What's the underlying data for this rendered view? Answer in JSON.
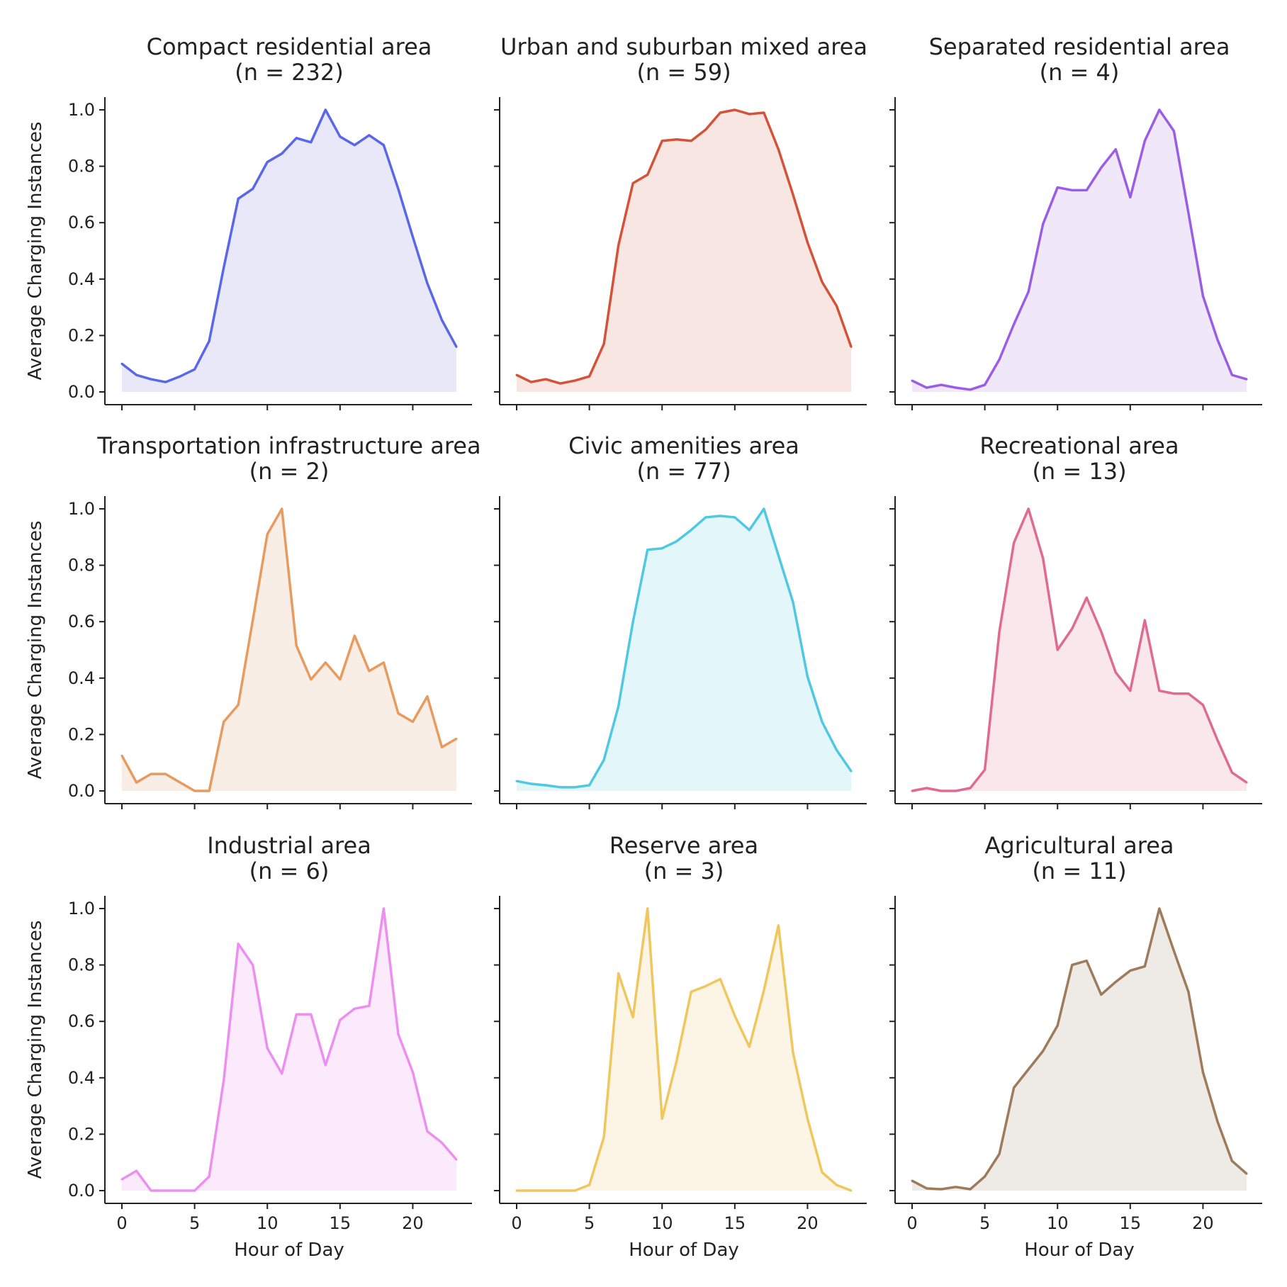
{
  "chart_data": [
    {
      "type": "area",
      "title": "Compact residential area",
      "subtitle": "(n = 232)",
      "xlabel": "",
      "ylabel": "Average Charging Instances",
      "xlim": [
        0,
        23
      ],
      "ylim": [
        0,
        1.0
      ],
      "grid": false,
      "color": "#5a67e6",
      "fill": "#e4e4f8",
      "x": [
        0,
        1,
        2,
        3,
        4,
        5,
        6,
        7,
        8,
        9,
        10,
        11,
        12,
        13,
        14,
        15,
        16,
        17,
        18,
        19,
        20,
        21,
        22,
        23
      ],
      "values": [
        0.1,
        0.06,
        0.045,
        0.035,
        0.055,
        0.08,
        0.18,
        0.44,
        0.685,
        0.72,
        0.815,
        0.845,
        0.9,
        0.885,
        1.0,
        0.905,
        0.875,
        0.91,
        0.875,
        0.72,
        0.55,
        0.385,
        0.255,
        0.16
      ]
    },
    {
      "type": "area",
      "title": "Urban and suburban mixed area",
      "subtitle": "(n = 59)",
      "xlabel": "",
      "ylabel": "",
      "xlim": [
        0,
        23
      ],
      "ylim": [
        0,
        1.0
      ],
      "grid": false,
      "color": "#d45338",
      "fill": "#f6e2dd",
      "x": [
        0,
        1,
        2,
        3,
        4,
        5,
        6,
        7,
        8,
        9,
        10,
        11,
        12,
        13,
        14,
        15,
        16,
        17,
        18,
        19,
        20,
        21,
        22,
        23
      ],
      "values": [
        0.06,
        0.035,
        0.045,
        0.03,
        0.04,
        0.055,
        0.17,
        0.52,
        0.74,
        0.77,
        0.89,
        0.895,
        0.89,
        0.93,
        0.99,
        1.0,
        0.985,
        0.99,
        0.86,
        0.7,
        0.53,
        0.39,
        0.305,
        0.16
      ]
    },
    {
      "type": "area",
      "title": "Separated residential area",
      "subtitle": "(n = 4)",
      "xlabel": "",
      "ylabel": "",
      "xlim": [
        0,
        23
      ],
      "ylim": [
        0,
        1.0
      ],
      "grid": false,
      "color": "#9b5de5",
      "fill": "#ede3f8",
      "x": [
        0,
        1,
        2,
        3,
        4,
        5,
        6,
        7,
        8,
        9,
        10,
        11,
        12,
        13,
        14,
        15,
        16,
        17,
        18,
        19,
        20,
        21,
        22,
        23
      ],
      "values": [
        0.04,
        0.015,
        0.025,
        0.015,
        0.008,
        0.025,
        0.115,
        0.24,
        0.355,
        0.595,
        0.725,
        0.715,
        0.715,
        0.795,
        0.86,
        0.69,
        0.89,
        1.0,
        0.925,
        0.635,
        0.34,
        0.185,
        0.06,
        0.045
      ]
    },
    {
      "type": "area",
      "title": "Transportation infrastructure area",
      "subtitle": "(n = 2)",
      "xlabel": "",
      "ylabel": "Average Charging Instances",
      "xlim": [
        0,
        23
      ],
      "ylim": [
        0,
        1.0
      ],
      "grid": false,
      "color": "#e89b5f",
      "fill": "#f8ebe1",
      "x": [
        0,
        1,
        2,
        3,
        4,
        5,
        6,
        7,
        8,
        9,
        10,
        11,
        12,
        13,
        14,
        15,
        16,
        17,
        18,
        19,
        20,
        21,
        22,
        23
      ],
      "values": [
        0.125,
        0.03,
        0.06,
        0.06,
        0.03,
        0.0,
        0.0,
        0.245,
        0.305,
        0.605,
        0.91,
        1.0,
        0.515,
        0.395,
        0.455,
        0.395,
        0.55,
        0.425,
        0.455,
        0.275,
        0.245,
        0.335,
        0.155,
        0.185
      ]
    },
    {
      "type": "area",
      "title": "Civic amenities area",
      "subtitle": "(n = 77)",
      "xlabel": "",
      "ylabel": "",
      "xlim": [
        0,
        23
      ],
      "ylim": [
        0,
        1.0
      ],
      "grid": false,
      "color": "#4fc8e2",
      "fill": "#def4f8",
      "x": [
        0,
        1,
        2,
        3,
        4,
        5,
        6,
        7,
        8,
        9,
        10,
        11,
        12,
        13,
        14,
        15,
        16,
        17,
        18,
        19,
        20,
        21,
        22,
        23
      ],
      "values": [
        0.035,
        0.025,
        0.02,
        0.013,
        0.013,
        0.02,
        0.11,
        0.3,
        0.6,
        0.855,
        0.86,
        0.885,
        0.925,
        0.97,
        0.975,
        0.97,
        0.925,
        1.0,
        0.835,
        0.67,
        0.405,
        0.245,
        0.145,
        0.07
      ]
    },
    {
      "type": "area",
      "title": "Recreational area",
      "subtitle": "(n = 13)",
      "xlabel": "",
      "ylabel": "",
      "xlim": [
        0,
        23
      ],
      "ylim": [
        0,
        1.0
      ],
      "grid": false,
      "color": "#e06b91",
      "fill": "#f8e3e9",
      "x": [
        0,
        1,
        2,
        3,
        4,
        5,
        6,
        7,
        8,
        9,
        10,
        11,
        12,
        13,
        14,
        15,
        16,
        17,
        18,
        19,
        20,
        21,
        22,
        23
      ],
      "values": [
        0.0,
        0.01,
        0.0,
        0.0,
        0.01,
        0.075,
        0.565,
        0.88,
        1.0,
        0.825,
        0.5,
        0.575,
        0.685,
        0.565,
        0.42,
        0.355,
        0.605,
        0.355,
        0.345,
        0.345,
        0.305,
        0.18,
        0.065,
        0.03
      ]
    },
    {
      "type": "area",
      "title": "Industrial area",
      "subtitle": "(n = 6)",
      "xlabel": "Hour of Day",
      "ylabel": "Average Charging Instances",
      "xlim": [
        0,
        23
      ],
      "ylim": [
        0,
        1.0
      ],
      "grid": false,
      "color": "#ec8ff0",
      "fill": "#f9e6fa",
      "x": [
        0,
        1,
        2,
        3,
        4,
        5,
        6,
        7,
        8,
        9,
        10,
        11,
        12,
        13,
        14,
        15,
        16,
        17,
        18,
        19,
        20,
        21,
        22,
        23
      ],
      "values": [
        0.04,
        0.07,
        0.0,
        0.0,
        0.0,
        0.0,
        0.05,
        0.39,
        0.875,
        0.8,
        0.505,
        0.415,
        0.625,
        0.625,
        0.445,
        0.605,
        0.645,
        0.655,
        1.0,
        0.555,
        0.42,
        0.21,
        0.17,
        0.11
      ]
    },
    {
      "type": "area",
      "title": "Reserve area",
      "subtitle": "(n = 3)",
      "xlabel": "Hour of Day",
      "ylabel": "",
      "xlim": [
        0,
        23
      ],
      "ylim": [
        0,
        1.0
      ],
      "grid": false,
      "color": "#f0c75e",
      "fill": "#fbf3e0",
      "x": [
        0,
        1,
        2,
        3,
        4,
        5,
        6,
        7,
        8,
        9,
        10,
        11,
        12,
        13,
        14,
        15,
        16,
        17,
        18,
        19,
        20,
        21,
        22,
        23
      ],
      "values": [
        0.0,
        0.0,
        0.0,
        0.0,
        0.0,
        0.02,
        0.19,
        0.77,
        0.615,
        1.0,
        0.255,
        0.46,
        0.705,
        0.725,
        0.75,
        0.62,
        0.51,
        0.71,
        0.94,
        0.49,
        0.255,
        0.065,
        0.02,
        0.0
      ]
    },
    {
      "type": "area",
      "title": "Agricultural area",
      "subtitle": "(n = 11)",
      "xlabel": "Hour of Day",
      "ylabel": "",
      "xlim": [
        0,
        23
      ],
      "ylim": [
        0,
        1.0
      ],
      "grid": false,
      "color": "#9e7b5b",
      "fill": "#ebe6e0",
      "x": [
        0,
        1,
        2,
        3,
        4,
        5,
        6,
        7,
        8,
        9,
        10,
        11,
        12,
        13,
        14,
        15,
        16,
        17,
        18,
        19,
        20,
        21,
        22,
        23
      ],
      "values": [
        0.035,
        0.008,
        0.005,
        0.013,
        0.005,
        0.05,
        0.13,
        0.365,
        0.43,
        0.495,
        0.585,
        0.8,
        0.815,
        0.695,
        0.74,
        0.78,
        0.795,
        1.0,
        0.85,
        0.705,
        0.42,
        0.245,
        0.105,
        0.06
      ]
    }
  ],
  "axes": {
    "xticks": [
      "0",
      "5",
      "10",
      "15",
      "20"
    ],
    "yticks": [
      "0.0",
      "0.2",
      "0.4",
      "0.6",
      "0.8",
      "1.0"
    ]
  }
}
